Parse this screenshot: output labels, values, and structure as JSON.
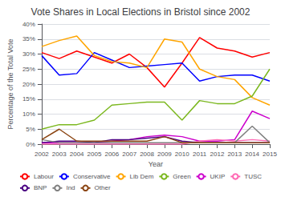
{
  "chart_data": {
    "type": "line",
    "title": "Vote Shares in Local Elections in Bristol since 2002",
    "xlabel": "Year",
    "ylabel": "Percentage of the Total Vote",
    "x": [
      2002,
      2003,
      2004,
      2005,
      2006,
      2007,
      2008,
      2009,
      2010,
      2011,
      2012,
      2013,
      2014,
      2015
    ],
    "series": [
      {
        "name": "Labour",
        "color": "#FF0000",
        "values": [
          30.5,
          28.5,
          31.0,
          29.0,
          27.0,
          30.0,
          25.5,
          19.0,
          27.0,
          35.5,
          32.0,
          31.0,
          29.0,
          30.5
        ]
      },
      {
        "name": "Conservative",
        "color": "#0000FF",
        "values": [
          29.5,
          23.0,
          23.5,
          30.5,
          28.0,
          25.5,
          26.0,
          26.5,
          27.0,
          21.0,
          22.5,
          23.0,
          23.0,
          21.0
        ]
      },
      {
        "name": "Lib Dem",
        "color": "#FFA500",
        "values": [
          32.5,
          34.5,
          36.0,
          29.5,
          27.5,
          27.0,
          25.5,
          35.0,
          34.0,
          25.0,
          22.5,
          21.5,
          15.5,
          13.0
        ]
      },
      {
        "name": "Green",
        "color": "#7CB820",
        "values": [
          5.0,
          6.5,
          6.5,
          8.0,
          13.0,
          13.5,
          14.0,
          14.0,
          8.0,
          14.5,
          13.5,
          13.5,
          16.0,
          25.0
        ]
      },
      {
        "name": "UKIP",
        "color": "#CC00CC",
        "values": [
          0.5,
          0.5,
          0.5,
          0.5,
          1.0,
          1.5,
          2.5,
          3.0,
          2.5,
          1.0,
          1.0,
          1.5,
          11.0,
          8.5
        ]
      },
      {
        "name": "TUSC",
        "color": "#FF69B4",
        "values": [
          0.0,
          0.0,
          0.0,
          0.0,
          0.0,
          0.0,
          0.0,
          0.0,
          0.0,
          1.0,
          1.5,
          1.0,
          1.5,
          1.0
        ]
      },
      {
        "name": "BNP",
        "color": "#4B0082",
        "values": [
          0.5,
          1.0,
          1.0,
          0.5,
          1.5,
          1.5,
          2.0,
          2.5,
          1.0,
          0.5,
          0.5,
          0.5,
          0.5,
          0.5
        ]
      },
      {
        "name": "Ind",
        "color": "#808080",
        "values": [
          1.5,
          0.5,
          0.5,
          0.5,
          0.5,
          0.5,
          0.5,
          0.5,
          0.5,
          0.5,
          0.5,
          0.5,
          6.0,
          0.5
        ]
      },
      {
        "name": "Other",
        "color": "#8B4513",
        "values": [
          1.5,
          5.0,
          1.0,
          1.0,
          1.0,
          1.0,
          1.0,
          2.5,
          0.5,
          0.5,
          0.5,
          0.5,
          0.5,
          0.5
        ]
      }
    ],
    "xlim": [
      2002,
      2015
    ],
    "xticks": [
      2002,
      2003,
      2004,
      2005,
      2006,
      2007,
      2008,
      2009,
      2010,
      2011,
      2012,
      2013,
      2014,
      2015
    ],
    "ylim": [
      0,
      40
    ],
    "yticks": [
      {
        "value": 0,
        "label": "0%"
      },
      {
        "value": 5,
        "label": "5%"
      },
      {
        "value": 10,
        "label": "10%"
      },
      {
        "value": 15,
        "label": "15%"
      },
      {
        "value": 20,
        "label": "20%"
      },
      {
        "value": 25,
        "label": "25%"
      },
      {
        "value": 30,
        "label": "30%"
      },
      {
        "value": 35,
        "label": "35%"
      },
      {
        "value": 40,
        "label": "40%"
      }
    ],
    "grid": true,
    "legend": "bottom"
  }
}
